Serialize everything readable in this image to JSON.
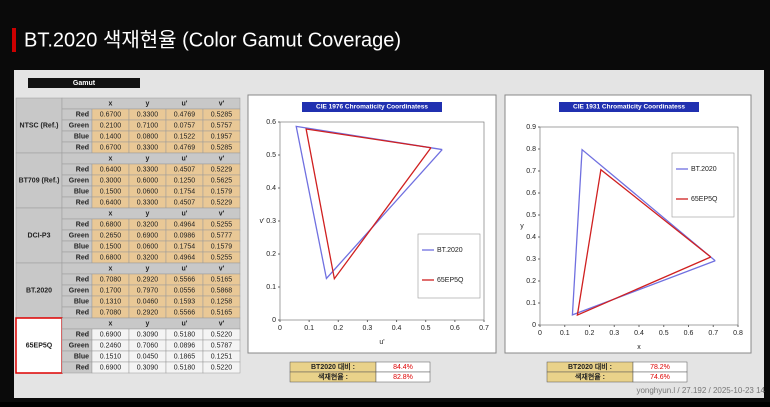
{
  "title": "BT.2020 색재현율 (Color Gamut Coverage)",
  "watermark": "yonghyun.l / 27.192 / 2025-10-23 14",
  "table": {
    "caption": "Gamut",
    "groups": [
      {
        "name": "NTSC (Ref.)",
        "header": [
          "x",
          "y",
          "u'",
          "v'"
        ],
        "rows": [
          [
            "Red",
            "0.6700",
            "0.3300",
            "0.4769",
            "0.5285"
          ],
          [
            "Green",
            "0.2100",
            "0.7100",
            "0.0757",
            "0.5757"
          ],
          [
            "Blue",
            "0.1400",
            "0.0800",
            "0.1522",
            "0.1957"
          ],
          [
            "Red",
            "0.6700",
            "0.3300",
            "0.4769",
            "0.5285"
          ]
        ]
      },
      {
        "name": "BT709 (Ref.)",
        "header": [
          "x",
          "y",
          "u'",
          "v'"
        ],
        "rows": [
          [
            "Red",
            "0.6400",
            "0.3300",
            "0.4507",
            "0.5229"
          ],
          [
            "Green",
            "0.3000",
            "0.6000",
            "0.1250",
            "0.5625"
          ],
          [
            "Blue",
            "0.1500",
            "0.0600",
            "0.1754",
            "0.1579"
          ],
          [
            "Red",
            "0.6400",
            "0.3300",
            "0.4507",
            "0.5229"
          ]
        ]
      },
      {
        "name": "DCI-P3",
        "header": [
          "x",
          "y",
          "u'",
          "v'"
        ],
        "rows": [
          [
            "Red",
            "0.6800",
            "0.3200",
            "0.4964",
            "0.5255"
          ],
          [
            "Green",
            "0.2650",
            "0.6900",
            "0.0986",
            "0.5777"
          ],
          [
            "Blue",
            "0.1500",
            "0.0600",
            "0.1754",
            "0.1579"
          ],
          [
            "Red",
            "0.6800",
            "0.3200",
            "0.4964",
            "0.5255"
          ]
        ]
      },
      {
        "name": "BT.2020",
        "header": [
          "x",
          "y",
          "u'",
          "v'"
        ],
        "rows": [
          [
            "Red",
            "0.7080",
            "0.2920",
            "0.5566",
            "0.5165"
          ],
          [
            "Green",
            "0.1700",
            "0.7970",
            "0.0556",
            "0.5868"
          ],
          [
            "Blue",
            "0.1310",
            "0.0460",
            "0.1593",
            "0.1258"
          ],
          [
            "Red",
            "0.7080",
            "0.2920",
            "0.5566",
            "0.5165"
          ]
        ]
      },
      {
        "name": "65EP5Q",
        "header": [
          "x",
          "y",
          "u'",
          "v'"
        ],
        "rows": [
          [
            "Red",
            "0.6900",
            "0.3090",
            "0.5180",
            "0.5220"
          ],
          [
            "Green",
            "0.2460",
            "0.7060",
            "0.0896",
            "0.5787"
          ],
          [
            "Blue",
            "0.1510",
            "0.0450",
            "0.1865",
            "0.1251"
          ],
          [
            "Red",
            "0.6900",
            "0.3090",
            "0.5180",
            "0.5220"
          ]
        ]
      }
    ]
  },
  "summaries": [
    {
      "rows": [
        [
          "BT2020 대비 :",
          "84.4%"
        ],
        [
          "색재현율 :",
          "82.8%"
        ]
      ]
    },
    {
      "rows": [
        [
          "BT2020 대비 :",
          "78.2%"
        ],
        [
          "색재현율 :",
          "74.6%"
        ]
      ]
    }
  ],
  "chart_data": [
    {
      "type": "line",
      "title": "CIE 1976 Chromaticity Coordinatess",
      "x_label": "u'",
      "y_label": "v'",
      "xlim": [
        0,
        0.7
      ],
      "ylim": [
        0,
        0.6
      ],
      "xticks": [
        0,
        0.1,
        0.2,
        0.3,
        0.4,
        0.5,
        0.6,
        0.7
      ],
      "yticks": [
        0,
        0.1,
        0.2,
        0.3,
        0.4,
        0.5,
        0.6
      ],
      "legend": "lower right",
      "series": [
        {
          "name": "BT.2020",
          "color": "#7070e0",
          "x": [
            0.5566,
            0.0556,
            0.1593,
            0.5566
          ],
          "values": [
            0.5165,
            0.5868,
            0.1258,
            0.5165
          ]
        },
        {
          "name": "65EP5Q",
          "color": "#d02020",
          "x": [
            0.518,
            0.0896,
            0.1865,
            0.518
          ],
          "values": [
            0.522,
            0.5787,
            0.1251,
            0.522
          ]
        }
      ]
    },
    {
      "type": "line",
      "title": "CIE 1931 Chromaticity Coordinatess",
      "x_label": "x",
      "y_label": "y",
      "xlim": [
        0,
        0.8
      ],
      "ylim": [
        0,
        0.9
      ],
      "xticks": [
        0,
        0.1,
        0.2,
        0.3,
        0.4,
        0.5,
        0.6,
        0.7,
        0.8
      ],
      "yticks": [
        0,
        0.1,
        0.2,
        0.3,
        0.4,
        0.5,
        0.6,
        0.7,
        0.8,
        0.9
      ],
      "legend": "upper right",
      "series": [
        {
          "name": "BT.2020",
          "color": "#7070e0",
          "x": [
            0.708,
            0.17,
            0.131,
            0.708
          ],
          "values": [
            0.292,
            0.797,
            0.046,
            0.292
          ]
        },
        {
          "name": "65EP5Q",
          "color": "#d02020",
          "x": [
            0.69,
            0.246,
            0.151,
            0.69
          ],
          "values": [
            0.309,
            0.706,
            0.045,
            0.309
          ]
        }
      ]
    }
  ]
}
